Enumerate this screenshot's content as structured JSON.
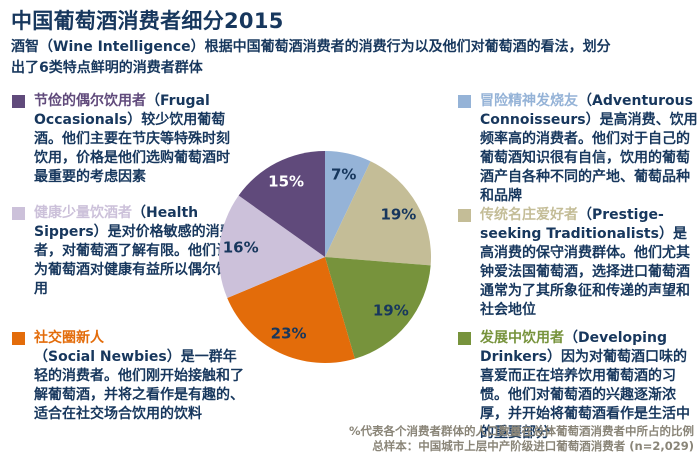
{
  "title": "中国葡萄酒消费者细分2015",
  "subtitle": "酒智（Wine Intelligence）根据中国葡萄酒消费者的消费行为以及他们对葡萄酒的看法，划分出了6类特点鲜明的消费者群体",
  "colors": {
    "title_text": "#17375D",
    "body_text": "#17375D",
    "footnote_text": "#8A8578",
    "background": "#FFFFFF"
  },
  "segments": [
    {
      "id": "frugal-occasionals",
      "name_cn": "节俭的偶尔饮用者",
      "name_en": "（Frugal Occasionals）",
      "body": "较少饮用葡萄酒。他们主要在节庆等特殊时刻饮用，价格是他们选购葡萄酒时最重要的考虑因素",
      "color": "#604A7B",
      "percent": "15%"
    },
    {
      "id": "health-sippers",
      "name_cn": "健康少量饮酒者",
      "name_en": "（Health Sippers）",
      "body": "是对价格敏感的消费者，对葡萄酒了解有限。他们认为葡萄酒对健康有益所以偶尔饮用",
      "color": "#CCC1DA",
      "percent": "16%"
    },
    {
      "id": "social-newbies",
      "name_cn": "社交圈新人",
      "name_en": "（Social Newbies）",
      "body": "是一群年轻的消费者。他们刚开始接触和了解葡萄酒，并将之看作是有趣的、适合在社交场合饮用的饮料",
      "color": "#E36C0A",
      "percent": "23%"
    },
    {
      "id": "adventurous-connoisseurs",
      "name_cn": "冒险精神发烧友",
      "name_en": "（Adventurous Connoisseurs）",
      "body": "是高消费、饮用频率高的消费者。他们对于自己的葡萄酒知识很有自信，饮用的葡萄酒产自各种不同的产地、葡萄品种和品牌",
      "color": "#95B3D7",
      "percent": "7%"
    },
    {
      "id": "prestige-seeking-traditionalists",
      "name_cn": "传统名庄爱好者",
      "name_en": "（Prestige-seeking Traditionalists）",
      "body": "是高消费的保守消费群体。他们尤其钟爱法国葡萄酒，选择进口葡萄酒通常为了其所象征和传递的声望和社会地位",
      "color": "#C4BD97",
      "percent": "19%"
    },
    {
      "id": "developing-drinkers",
      "name_cn": "发展中饮用者",
      "name_en": "（Developing Drinkers）",
      "body": "因为对葡萄酒口味的喜爱而正在培养饮用葡萄酒的习惯。他们对葡萄酒的兴趣逐渐浓厚，并开始将葡萄酒看作是生活中的重要部分",
      "color": "#77933C",
      "percent": "19%"
    }
  ],
  "chart_data": {
    "type": "pie",
    "title": "中国葡萄酒消费者细分2015",
    "start_angle_deg": 0,
    "direction": "clockwise",
    "legend": "none",
    "slices": [
      {
        "label": "冒险精神发烧友 (Adventurous Connoisseurs)",
        "value": 7,
        "display": "7%",
        "color": "#95B3D7",
        "label_color": "#17375D"
      },
      {
        "label": "传统名庄爱好者 (Prestige-seeking Traditionalists)",
        "value": 19,
        "display": "19%",
        "color": "#C4BD97",
        "label_color": "#17375D"
      },
      {
        "label": "发展中饮用者 (Developing Drinkers)",
        "value": 19,
        "display": "19%",
        "color": "#77933C",
        "label_color": "#17375D"
      },
      {
        "label": "社交圈新人 (Social Newbies)",
        "value": 23,
        "display": "23%",
        "color": "#E36C0A",
        "label_color": "#17375D"
      },
      {
        "label": "健康少量饮酒者 (Health Sippers)",
        "value": 16,
        "display": "16%",
        "color": "#CCC1DA",
        "label_color": "#17375D"
      },
      {
        "label": "节俭的偶尔饮用者 (Frugal Occasionals)",
        "value": 15,
        "display": "15%",
        "color": "#604A7B",
        "label_color": "#FFFFFF"
      }
    ]
  },
  "footnote": {
    "line1": "%代表各个消费者群体的人口数量在总体葡萄酒消费者中所占的比例",
    "line2": "总样本：中国城市上层中产阶级进口葡萄酒消费者 (n=2,029)"
  }
}
